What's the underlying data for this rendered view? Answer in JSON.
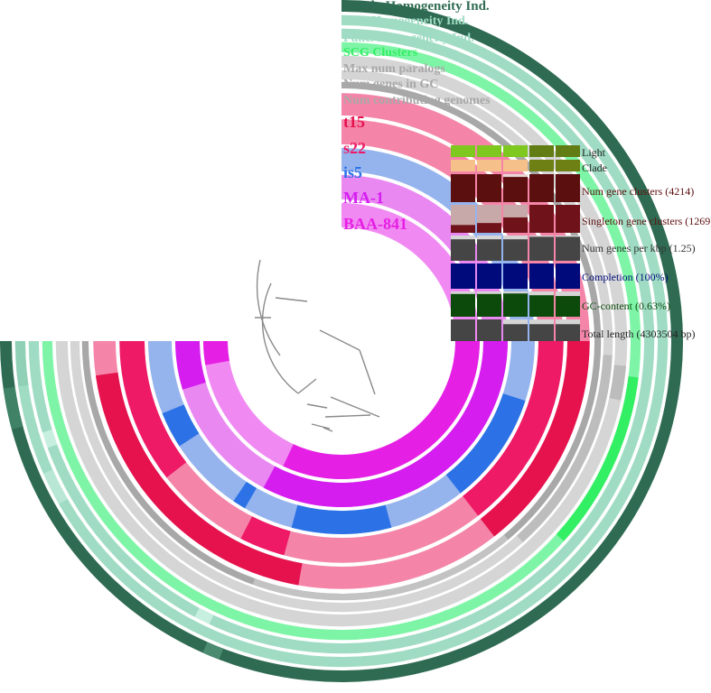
{
  "colors": {
    "comb": "#2f6b52",
    "geo": "#9fdcc3",
    "func": "#9fdcc3",
    "scg": "#7ef5a6",
    "scg_hi": "#33ef63",
    "gray": "#d5d5d5",
    "gray_dark": "#a8a8a8",
    "t15": "#f485a9",
    "t15_hi": "#e5124d",
    "s22": "#f485a9",
    "s22_hi": "#ee1a66",
    "is5": "#95b4ee",
    "is5_hi": "#2c72e6",
    "ma1": "#ea88f2",
    "ma1_hi": "#d51df0",
    "baa": "#f08af2",
    "baa_hi": "#e61fe4",
    "light_bar": "#7ec81f",
    "light_bar2": "#627d13",
    "clade_bar": "#f6c08a",
    "clade_bar2": "#6e7f13",
    "gene_clusters": "#5c0f0f",
    "singleton_bg": "#c8a9a9",
    "genes_per_kbp": "#454545",
    "completion": "#000a7a",
    "gc": "#0c4a0c",
    "total_length": "#454545"
  },
  "layers": {
    "comb": "Comb. Homogeneity Ind.",
    "geo": "Geo. Homogeneity Ind.",
    "func": "Func. Homogeneity Ind.",
    "scg": "SCG Clusters",
    "max_paralogs": "Max num paralogs",
    "num_genes": "Num genes in GC",
    "num_genomes": "Num contributing genomes",
    "t15": "t15",
    "s22": "s22",
    "is5": "is5",
    "ma1": "MA-1",
    "baa": "BAA-841"
  },
  "layer_colors_text": {
    "comb": "#2f6b52",
    "geo": "#9fdcc3",
    "func": "#9fdcc3",
    "scg": "#33ef63",
    "gray": "#a8a8a8",
    "t15": "#e5124d",
    "s22": "#ee1a66",
    "is5": "#2c72e6",
    "ma1": "#d51df0",
    "baa": "#e61fe4"
  },
  "metadata": {
    "light": "Light",
    "clade": "Clade",
    "num_gene_clusters": "Num gene clusters (4214)",
    "singleton_clusters": "Singleton gene clusters (1269)",
    "genes_per_kbp": "Num genes per kbp (1.25)",
    "completion": "Completion (100%)",
    "gc_content": "GC-content (0.63%)",
    "total_length": "Total length (4303504 bp)"
  },
  "metadata_values": {
    "singleton_fraction": [
      0.28,
      0.35,
      0.55,
      1.0,
      1.0
    ],
    "num_clusters_fraction": [
      1.0,
      1.0,
      0.9,
      1.0,
      1.0
    ],
    "genes_per_kbp_fraction": [
      0.85,
      0.85,
      0.85,
      0.95,
      0.95
    ],
    "completion_fraction": [
      1.0,
      1.0,
      1.0,
      1.0,
      1.0
    ],
    "gc_fraction": [
      0.9,
      0.9,
      0.92,
      0.85,
      0.82
    ],
    "total_length_fraction": [
      1.0,
      1.0,
      0.78,
      0.78,
      0.78
    ]
  }
}
